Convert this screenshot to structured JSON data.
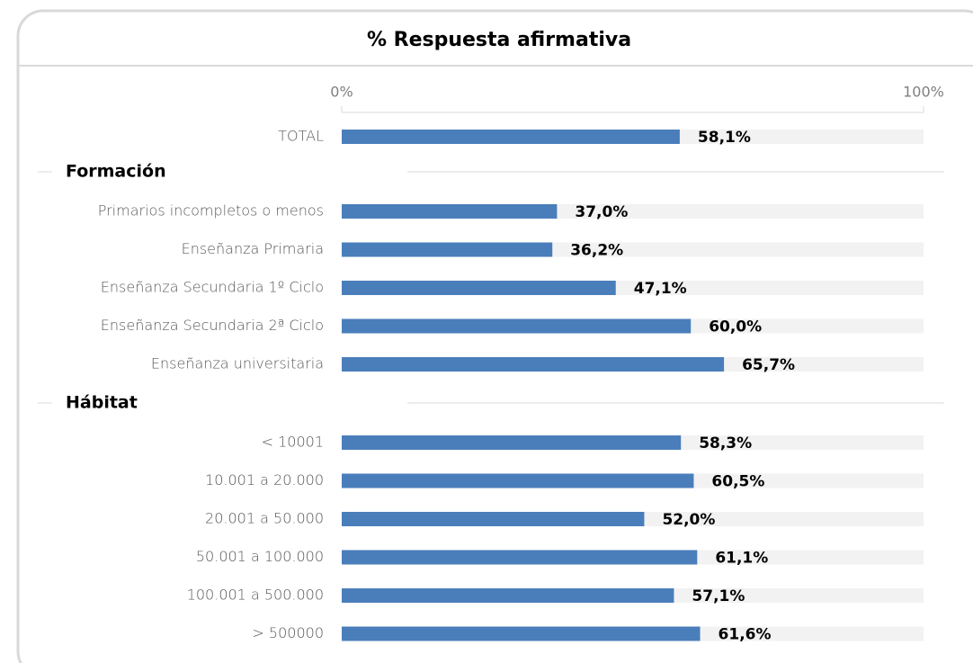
{
  "chart_data": {
    "type": "bar",
    "orientation": "horizontal",
    "title": "% Respuesta afirmativa",
    "xlim": [
      0,
      100
    ],
    "xticks": [
      {
        "value": 0,
        "label": "0%"
      },
      {
        "value": 100,
        "label": "100%"
      }
    ],
    "color": "#4a7ebb",
    "total": {
      "category": "TOTAL",
      "value": 58.1,
      "value_label": "58,1%"
    },
    "groups": [
      {
        "name": "Formación",
        "categories": [
          "Primarios incompletos o menos",
          "Enseñanza Primaria",
          "Enseñanza Secundaria 1º Ciclo",
          "Enseñanza Secundaria 2ª Ciclo",
          "Enseñanza universitaria"
        ],
        "values": [
          37.0,
          36.2,
          47.1,
          60.0,
          65.7
        ],
        "value_labels": [
          "37,0%",
          "36,2%",
          "47,1%",
          "60,0%",
          "65,7%"
        ]
      },
      {
        "name": "Hábitat",
        "categories": [
          "< 10001",
          "10.001 a 20.000",
          "20.001 a 50.000",
          "50.001 a 100.000",
          "100.001 a 500.000",
          "> 500000"
        ],
        "values": [
          58.3,
          60.5,
          52.0,
          61.1,
          57.1,
          61.6
        ],
        "value_labels": [
          "58,3%",
          "60,5%",
          "52,0%",
          "61,1%",
          "57,1%",
          "61,6%"
        ]
      }
    ]
  }
}
